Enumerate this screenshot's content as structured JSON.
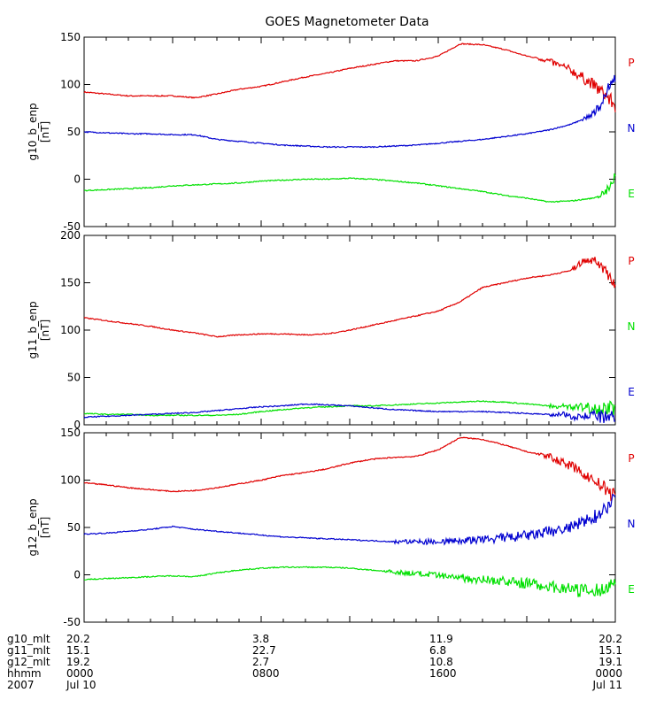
{
  "chart_data": {
    "type": "line",
    "title": "GOES Magnetometer Data",
    "x_range_hours": [
      0,
      24
    ],
    "panels": [
      {
        "ylabel": "g10_b_enp",
        "yunit": "[nT]",
        "ylim": [
          -50,
          150
        ],
        "yticks": [
          -50,
          0,
          50,
          100,
          150
        ],
        "series": [
          {
            "name": "P",
            "color": "#e00000",
            "x": [
              0,
              1,
              2,
              3,
              4,
              5,
              6,
              7,
              8,
              9,
              10,
              11,
              12,
              12.5,
              13,
              14,
              15,
              16,
              17,
              18,
              19,
              20,
              20.5,
              21,
              22,
              23,
              23.5,
              24
            ],
            "y": [
              92,
              90,
              88,
              88,
              88,
              86,
              90,
              95,
              98,
              103,
              108,
              112,
              117,
              119,
              121,
              125,
              125,
              130,
              143,
              142,
              137,
              130,
              128,
              125,
              115,
              100,
              90,
              78
            ]
          },
          {
            "name": "N",
            "color": "#0000d0",
            "x": [
              0,
              1,
              2,
              3,
              4,
              5,
              6,
              7,
              8,
              9,
              10,
              11,
              12,
              13,
              14,
              15,
              16,
              17,
              18,
              19,
              20,
              21,
              22,
              23,
              23.5,
              24
            ],
            "y": [
              50,
              49,
              48,
              48,
              47,
              47,
              42,
              40,
              38,
              36,
              35,
              34,
              34,
              34,
              35,
              36,
              38,
              40,
              42,
              45,
              48,
              52,
              58,
              68,
              85,
              110
            ]
          },
          {
            "name": "E",
            "color": "#00e000",
            "x": [
              0,
              1,
              2,
              3,
              4,
              5,
              6,
              7,
              8,
              9,
              10,
              11,
              12,
              13,
              14,
              15,
              16,
              17,
              18,
              19,
              20,
              21,
              22,
              23,
              23.5,
              24
            ],
            "y": [
              -12,
              -11,
              -10,
              -9,
              -7,
              -6,
              -5,
              -4,
              -2,
              -1,
              0,
              0,
              1,
              0,
              -2,
              -4,
              -7,
              -10,
              -13,
              -17,
              -20,
              -24,
              -23,
              -20,
              -15,
              2
            ]
          }
        ],
        "noisy_from_hours": [
          20.5,
          22.5,
          23.2
        ],
        "legend": [
          "P",
          "N",
          "E"
        ]
      },
      {
        "ylabel": "g11_b_enp",
        "yunit": "[nT]",
        "ylim": [
          0,
          200
        ],
        "yticks": [
          0,
          50,
          100,
          150,
          200
        ],
        "series": [
          {
            "name": "P",
            "color": "#e00000",
            "x": [
              0,
              1,
              2,
              3,
              4,
              5,
              6,
              7,
              8,
              9,
              10,
              11,
              12,
              13,
              14,
              15,
              16,
              17,
              18,
              19,
              20,
              21,
              22,
              22.5,
              23,
              23.5,
              24
            ],
            "y": [
              113,
              110,
              107,
              104,
              100,
              97,
              93,
              95,
              96,
              96,
              95,
              96,
              100,
              105,
              110,
              115,
              120,
              130,
              145,
              150,
              155,
              158,
              163,
              172,
              175,
              165,
              148
            ]
          },
          {
            "name": "N",
            "color": "#00e000",
            "x": [
              0,
              1,
              2,
              3,
              4,
              5,
              6,
              7,
              8,
              9,
              10,
              11,
              12,
              13,
              14,
              15,
              16,
              17,
              18,
              19,
              20,
              21,
              22,
              23,
              24
            ],
            "y": [
              12,
              11,
              11,
              10,
              10,
              10,
              10,
              11,
              14,
              16,
              18,
              19,
              20,
              20,
              21,
              22,
              23,
              24,
              25,
              24,
              22,
              20,
              19,
              18,
              17
            ]
          },
          {
            "name": "E",
            "color": "#0000d0",
            "x": [
              0,
              1,
              2,
              3,
              4,
              5,
              6,
              7,
              8,
              9,
              10,
              11,
              12,
              13,
              14,
              15,
              16,
              17,
              18,
              19,
              20,
              21,
              22,
              23,
              24
            ],
            "y": [
              8,
              9,
              10,
              11,
              12,
              13,
              15,
              17,
              19,
              20,
              22,
              21,
              20,
              18,
              16,
              15,
              14,
              14,
              14,
              13,
              12,
              11,
              10,
              9,
              7
            ]
          }
        ],
        "noisy_from_hours": [
          22.0,
          21.0,
          21.0
        ],
        "legend": [
          "P",
          "N",
          "E"
        ]
      },
      {
        "ylabel": "g12_b_enp",
        "yunit": "[nT]",
        "ylim": [
          -50,
          150
        ],
        "yticks": [
          -50,
          0,
          50,
          100,
          150
        ],
        "series": [
          {
            "name": "P",
            "color": "#e00000",
            "x": [
              0,
              1,
              2,
              3,
              4,
              5,
              6,
              7,
              8,
              9,
              10,
              11,
              12,
              12.5,
              13,
              14,
              15,
              16,
              17,
              18,
              19,
              20,
              21,
              22,
              23,
              23.5,
              24
            ],
            "y": [
              97,
              95,
              92,
              90,
              88,
              89,
              92,
              96,
              100,
              105,
              108,
              112,
              118,
              120,
              122,
              124,
              125,
              132,
              145,
              143,
              137,
              130,
              125,
              115,
              100,
              92,
              82
            ]
          },
          {
            "name": "N",
            "color": "#0000d0",
            "x": [
              0,
              1,
              2,
              3,
              4,
              5,
              6,
              7,
              8,
              9,
              10,
              11,
              12,
              13,
              14,
              15,
              16,
              17,
              18,
              19,
              20,
              21,
              22,
              23,
              23.5,
              24
            ],
            "y": [
              43,
              44,
              46,
              48,
              51,
              48,
              46,
              44,
              42,
              40,
              39,
              38,
              37,
              36,
              35,
              35,
              35,
              36,
              37,
              39,
              41,
              45,
              50,
              60,
              70,
              80
            ]
          },
          {
            "name": "E",
            "color": "#00e000",
            "x": [
              0,
              1,
              2,
              3,
              4,
              5,
              6,
              7,
              8,
              9,
              10,
              11,
              12,
              13,
              14,
              15,
              16,
              17,
              18,
              19,
              20,
              21,
              22,
              23,
              23.5,
              24
            ],
            "y": [
              -5,
              -4,
              -3,
              -2,
              -1,
              -2,
              2,
              5,
              7,
              8,
              8,
              8,
              7,
              5,
              3,
              1,
              -1,
              -3,
              -5,
              -7,
              -9,
              -12,
              -15,
              -18,
              -15,
              -5
            ]
          }
        ],
        "noisy_from_hours": [
          20.5,
          14.0,
          13.5
        ],
        "legend": [
          "P",
          "N",
          "E"
        ]
      }
    ],
    "x_axis_info": {
      "row_labels": [
        "g10_mlt",
        "g11_mlt",
        "g12_mlt",
        "hhmm",
        "2007"
      ],
      "columns": [
        {
          "x": 0,
          "values": [
            "20.2",
            "15.1",
            "19.2",
            "0000",
            "Jul 10"
          ]
        },
        {
          "x": 8,
          "values": [
            "3.8",
            "22.7",
            "2.7",
            "0800",
            ""
          ]
        },
        {
          "x": 16,
          "values": [
            "11.9",
            "6.8",
            "10.8",
            "1600",
            ""
          ]
        },
        {
          "x": 24,
          "values": [
            "20.2",
            "15.1",
            "19.1",
            "0000",
            "Jul 11"
          ]
        }
      ]
    }
  }
}
